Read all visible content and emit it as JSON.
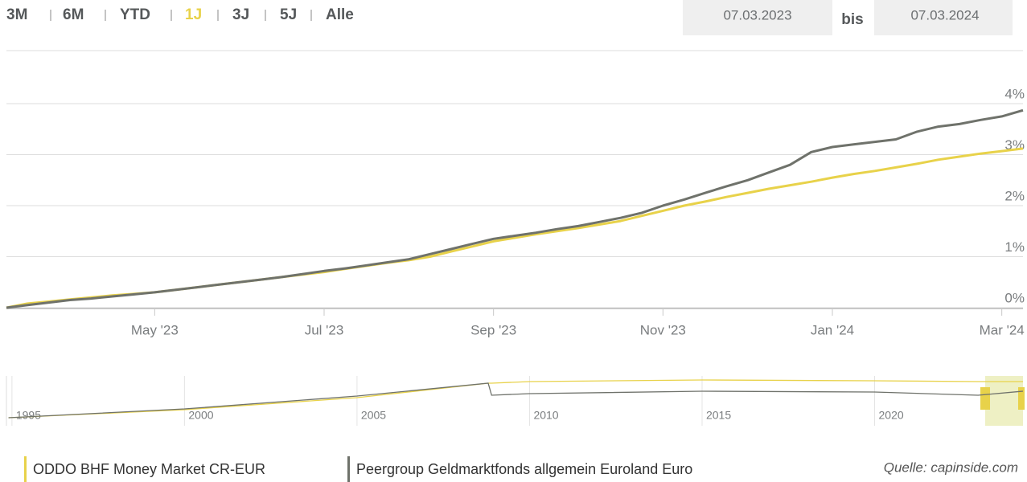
{
  "controls": {
    "ranges": [
      "3M",
      "6M",
      "YTD",
      "1J",
      "3J",
      "5J",
      "Alle"
    ],
    "active": 3,
    "from": "07.03.2023",
    "separator": "bis",
    "to": "07.03.2024"
  },
  "source": "Quelle: capinside.com",
  "chart_data": [
    {
      "type": "line",
      "categories": [
        null,
        null,
        null,
        null,
        null,
        null,
        null,
        "May '23",
        null,
        null,
        null,
        null,
        null,
        null,
        null,
        "Jul '23",
        null,
        null,
        null,
        null,
        null,
        null,
        null,
        "Sep '23",
        null,
        null,
        null,
        null,
        null,
        null,
        null,
        "Nov '23",
        null,
        null,
        null,
        null,
        null,
        null,
        null,
        "Jan '24",
        null,
        null,
        null,
        null,
        null,
        null,
        null,
        "Mar '24",
        null
      ],
      "series": [
        {
          "name": "ODDO BHF Money Market CR-EUR",
          "color": "#e8d24a",
          "values": [
            0,
            0.08,
            0.12,
            0.16,
            0.2,
            0.24,
            0.27,
            0.3,
            0.35,
            0.4,
            0.45,
            0.5,
            0.55,
            0.6,
            0.65,
            0.7,
            0.76,
            0.82,
            0.88,
            0.93,
            1.0,
            1.1,
            1.2,
            1.3,
            1.37,
            1.44,
            1.5,
            1.56,
            1.63,
            1.7,
            1.8,
            1.9,
            2.0,
            2.08,
            2.17,
            2.25,
            2.33,
            2.4,
            2.47,
            2.55,
            2.62,
            2.68,
            2.75,
            2.82,
            2.9,
            2.96,
            3.02,
            3.07,
            3.12
          ]
        },
        {
          "name": "Peergroup Geldmarktfonds allgemein Euroland Euro",
          "color": "#6f726b",
          "values": [
            0,
            0.05,
            0.1,
            0.15,
            0.18,
            0.22,
            0.26,
            0.3,
            0.35,
            0.4,
            0.45,
            0.5,
            0.55,
            0.6,
            0.66,
            0.72,
            0.77,
            0.83,
            0.89,
            0.95,
            1.05,
            1.15,
            1.25,
            1.35,
            1.41,
            1.47,
            1.54,
            1.6,
            1.68,
            1.76,
            1.86,
            2.0,
            2.12,
            2.25,
            2.38,
            2.5,
            2.65,
            2.8,
            3.05,
            3.15,
            3.2,
            3.25,
            3.3,
            3.45,
            3.55,
            3.6,
            3.68,
            3.75,
            3.87
          ]
        }
      ],
      "ylim": [
        0,
        4
      ],
      "yticks": [
        {
          "value": 0,
          "label": "0%"
        },
        {
          "value": 1,
          "label": "1%"
        },
        {
          "value": 2,
          "label": "2%"
        },
        {
          "value": 3,
          "label": "3%"
        },
        {
          "value": 4,
          "label": "4%"
        }
      ],
      "grid": true
    },
    {
      "type": "line",
      "x": [
        1994.9,
        2000,
        2005,
        2008.8,
        2008.9,
        2010,
        2015,
        2020,
        2023,
        2024.3
      ],
      "series": [
        {
          "color": "#e8d24a",
          "values": [
            5,
            15,
            30,
            48,
            48,
            50,
            52,
            51,
            50,
            50
          ]
        },
        {
          "color": "#6f726b",
          "values": [
            5,
            16,
            32,
            48,
            33,
            35,
            38,
            37,
            33,
            38
          ]
        }
      ],
      "xlim": [
        1994.84,
        2024.3
      ],
      "xticks": [
        1995,
        2000,
        2005,
        2010,
        2015,
        2020
      ],
      "ylim": [
        0,
        55
      ]
    }
  ]
}
